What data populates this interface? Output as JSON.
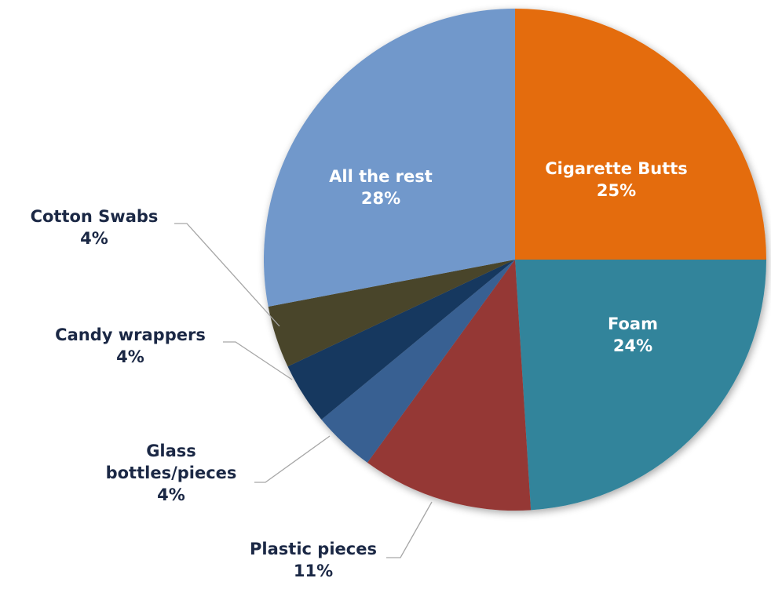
{
  "chart_data": {
    "type": "pie",
    "title": "",
    "slices": [
      {
        "name": "Cigarette Butts",
        "value": 25,
        "label": "25%",
        "color": "#e46c0a"
      },
      {
        "name": "Foam",
        "value": 24,
        "label": "24%",
        "color": "#31849b"
      },
      {
        "name": "Plastic pieces",
        "value": 11,
        "label": "11%",
        "color": "#953735"
      },
      {
        "name": "Glass bottles/pieces",
        "value": 4,
        "label": "4%",
        "color": "#376092"
      },
      {
        "name": "Candy wrappers",
        "value": 4,
        "label": "4%",
        "color": "#17375e"
      },
      {
        "name": "Cotton Swabs",
        "value": 4,
        "label": "4%",
        "color": "#494429"
      },
      {
        "name": "All the rest",
        "value": 28,
        "label": "28%",
        "color": "#7198cb"
      }
    ],
    "legend": "none",
    "labels": {
      "text_color_inside": "#ffffff",
      "text_color_outside": "#1b2845",
      "leader_color": "#a6a6a6"
    }
  }
}
